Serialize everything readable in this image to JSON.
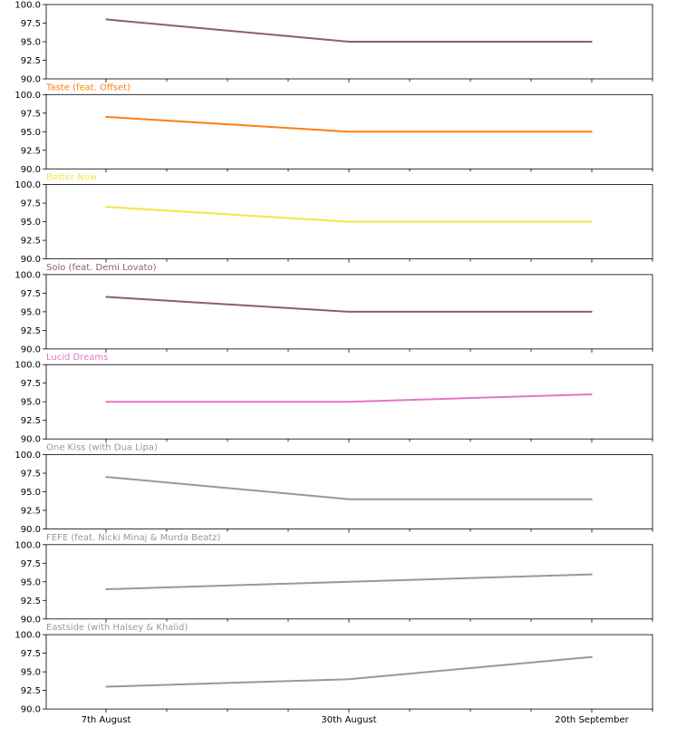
{
  "chart_data": {
    "type": "line",
    "x": [
      "7th August",
      "30th August",
      "20th September"
    ],
    "ylim": [
      90.0,
      100.0
    ],
    "yticks": [
      "90.0",
      "92.5",
      "95.0",
      "97.5",
      "100.0"
    ],
    "grid": false,
    "panels": [
      {
        "title": "",
        "color": "#8c5d75",
        "values": [
          98,
          95,
          95
        ]
      },
      {
        "title": "Taste (feat. Offset)",
        "color": "#ff7f0e",
        "values": [
          97,
          95,
          95
        ]
      },
      {
        "title": "Better Now",
        "color": "#f2e64a",
        "values": [
          97,
          95,
          95
        ]
      },
      {
        "title": "Solo (feat. Demi Lovato)",
        "color": "#8c5d75",
        "values": [
          97,
          95,
          95
        ]
      },
      {
        "title": "Lucid Dreams",
        "color": "#e377c2",
        "values": [
          95,
          95,
          96
        ]
      },
      {
        "title": "One Kiss (with Dua Lipa)",
        "color": "#a09696",
        "values": [
          97,
          94,
          94
        ]
      },
      {
        "title": "FEFE (feat. Nicki Minaj & Murda Beatz)",
        "color": "#a09696",
        "values": [
          94,
          95,
          96
        ]
      },
      {
        "title": "Eastside (with Halsey & Khalid)",
        "color": "#a09696",
        "values": [
          93,
          94,
          97
        ]
      }
    ]
  }
}
